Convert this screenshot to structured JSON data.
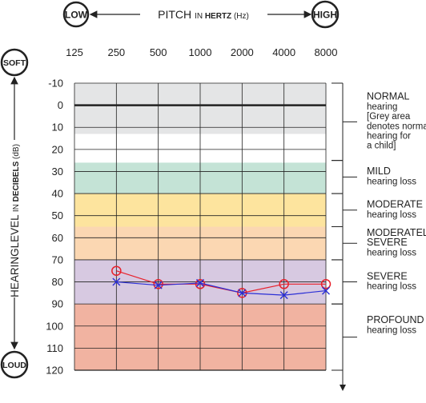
{
  "chart_data": {
    "type": "line",
    "title": "PITCH IN HERTZ (Hz)",
    "title_parts": {
      "a": "PITCH ",
      "b": "IN ",
      "c": "HERTZ",
      "d": " (Hz)"
    },
    "xlabel_low": "LOW",
    "xlabel_high": "HIGH",
    "ylabel_parts": {
      "a": "HEARINGLEVEL ",
      "b": "IN ",
      "c": "DECIBELS",
      "d": " (dB)"
    },
    "ylabel_soft": "SOFT",
    "ylabel_loud": "LOUD",
    "x": [
      "125",
      "250",
      "500",
      "1000",
      "2000",
      "4000",
      "8000"
    ],
    "y_ticks": [
      "-10",
      "0",
      "10",
      "20",
      "30",
      "40",
      "50",
      "60",
      "70",
      "80",
      "90",
      "100",
      "110",
      "120"
    ],
    "ylim": [
      -10,
      120
    ],
    "y_inverted": true,
    "grid": true,
    "bands": [
      {
        "from": -10,
        "to": 13,
        "color": "#e4e5e6"
      },
      {
        "from": 26,
        "to": 40,
        "color": "#c4e3d6"
      },
      {
        "from": 40,
        "to": 55,
        "color": "#fde49e"
      },
      {
        "from": 55,
        "to": 70,
        "color": "#fbd7b2"
      },
      {
        "from": 70,
        "to": 90,
        "color": "#d7c9e1"
      },
      {
        "from": 90,
        "to": 120,
        "color": "#f1b3a1"
      }
    ],
    "categories": [
      {
        "from": -10,
        "to": 25,
        "lines": [
          "NORMAL"
        ],
        "sub": [
          "hearing",
          "[Grey area",
          "denotes normal",
          "hearing for",
          "a child]"
        ]
      },
      {
        "from": 25,
        "to": 40,
        "lines": [
          "MILD"
        ],
        "sub": [
          "hearing loss"
        ]
      },
      {
        "from": 40,
        "to": 55,
        "lines": [
          "MODERATE"
        ],
        "sub": [
          "hearing loss"
        ]
      },
      {
        "from": 55,
        "to": 70,
        "lines": [
          "MODERATELY",
          "SEVERE"
        ],
        "sub": [
          "hearing loss"
        ]
      },
      {
        "from": 70,
        "to": 90,
        "lines": [
          "SEVERE"
        ],
        "sub": [
          "hearing loss"
        ]
      },
      {
        "from": 90,
        "to": 120,
        "lines": [
          "PROFOUND"
        ],
        "sub": [
          "hearing loss"
        ]
      }
    ],
    "series": [
      {
        "marker": "o",
        "color": "#e8202a",
        "values": [
          75,
          81,
          81,
          85,
          81,
          81
        ]
      },
      {
        "marker": "x",
        "color": "#2b2fd6",
        "values": [
          80,
          81.5,
          80.5,
          85,
          86,
          84
        ]
      }
    ],
    "series_x": [
      "250",
      "500",
      "1000",
      "2000",
      "4000",
      "8000"
    ],
    "series_x_offsets": [
      [
        0,
        0,
        0,
        0,
        0,
        0
      ],
      [
        0,
        0,
        0,
        0,
        0,
        0
      ]
    ]
  }
}
